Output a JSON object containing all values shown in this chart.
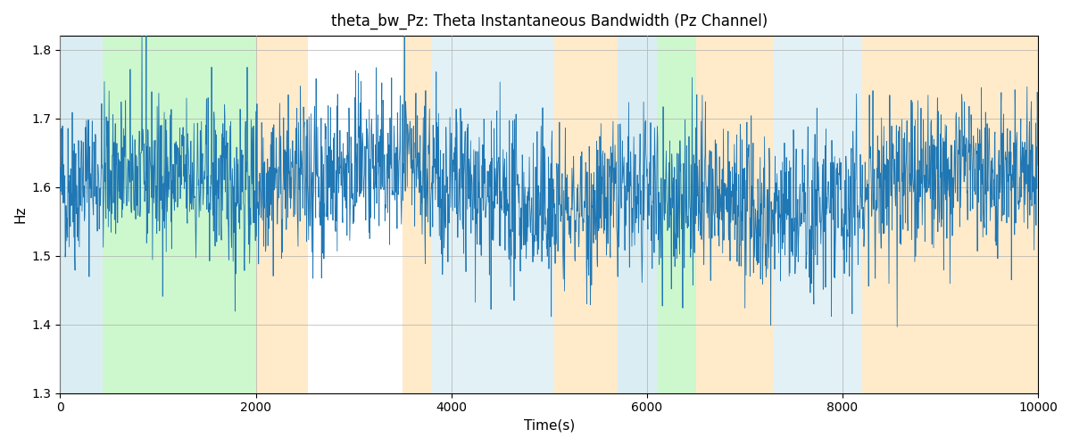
{
  "title": "theta_bw_Pz: Theta Instantaneous Bandwidth (Pz Channel)",
  "xlabel": "Time(s)",
  "ylabel": "Hz",
  "xlim": [
    0,
    10000
  ],
  "ylim": [
    1.3,
    1.82
  ],
  "line_color": "#1f77b4",
  "line_width": 0.6,
  "background_color": "#ffffff",
  "grid_color": "#b0b0b0",
  "seed": 42,
  "n_points": 2500,
  "mean": 1.595,
  "std": 0.055,
  "spike_std": 0.045,
  "spike_threshold": 1.3,
  "bands": [
    {
      "xmin": 0,
      "xmax": 430,
      "color": "#add8e6",
      "alpha": 0.45
    },
    {
      "xmin": 430,
      "xmax": 2000,
      "color": "#90ee90",
      "alpha": 0.45
    },
    {
      "xmin": 2000,
      "xmax": 2530,
      "color": "#ffd9a0",
      "alpha": 0.55
    },
    {
      "xmin": 2530,
      "xmax": 3500,
      "color": "#ffffff",
      "alpha": 1.0
    },
    {
      "xmin": 3500,
      "xmax": 3800,
      "color": "#ffd9a0",
      "alpha": 0.55
    },
    {
      "xmin": 3800,
      "xmax": 5050,
      "color": "#add8e6",
      "alpha": 0.35
    },
    {
      "xmin": 5050,
      "xmax": 5700,
      "color": "#ffd9a0",
      "alpha": 0.55
    },
    {
      "xmin": 5700,
      "xmax": 6100,
      "color": "#add8e6",
      "alpha": 0.45
    },
    {
      "xmin": 6100,
      "xmax": 6500,
      "color": "#90ee90",
      "alpha": 0.45
    },
    {
      "xmin": 6500,
      "xmax": 7300,
      "color": "#ffd9a0",
      "alpha": 0.55
    },
    {
      "xmin": 7300,
      "xmax": 8200,
      "color": "#add8e6",
      "alpha": 0.35
    },
    {
      "xmin": 8200,
      "xmax": 10000,
      "color": "#ffd9a0",
      "alpha": 0.55
    }
  ],
  "yticks": [
    1.3,
    1.4,
    1.5,
    1.6,
    1.7,
    1.8
  ],
  "xticks": [
    0,
    2000,
    4000,
    6000,
    8000,
    10000
  ],
  "title_fontsize": 12,
  "label_fontsize": 11,
  "tick_fontsize": 10
}
